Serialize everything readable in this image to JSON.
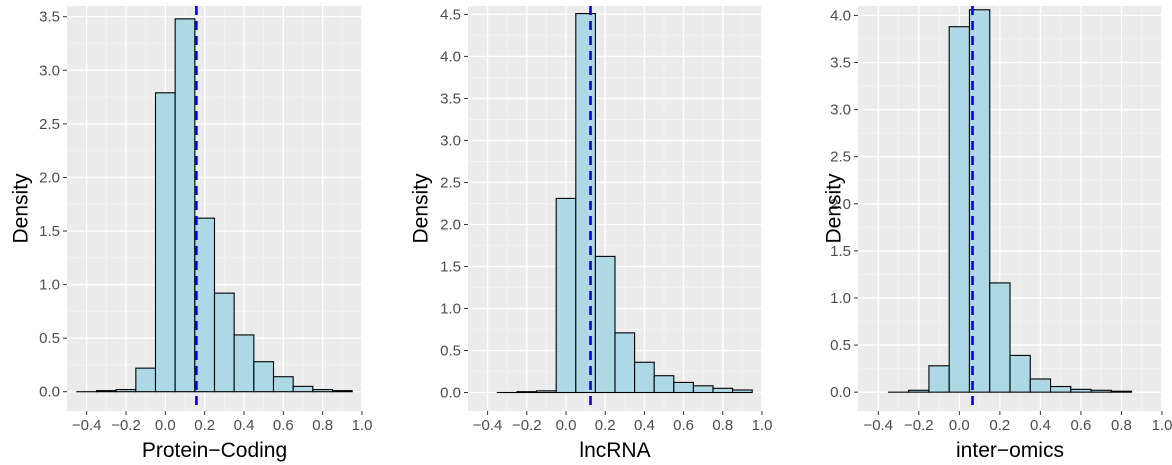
{
  "colors": {
    "panel_bg": "#ebebeb",
    "grid_major": "#ffffff",
    "grid_minor": "#f5f5f5",
    "bar_fill": "#add8e6",
    "bar_stroke": "#000000",
    "ref_line": "#0000ff"
  },
  "chart_data": [
    {
      "type": "bar",
      "xlabel": "Protein−Coding",
      "ylabel": "Density",
      "xlim": [
        -0.5,
        1.0
      ],
      "ylim": [
        -0.18,
        3.6
      ],
      "x_ticks": [
        -0.4,
        -0.2,
        0.0,
        0.2,
        0.4,
        0.6,
        0.8,
        1.0
      ],
      "x_tick_labels": [
        "−0.4",
        "−0.2",
        "0.0",
        "0.2",
        "0.4",
        "0.6",
        "0.8",
        "1.0"
      ],
      "y_ticks": [
        0.0,
        0.5,
        1.0,
        1.5,
        2.0,
        2.5,
        3.0,
        3.5
      ],
      "y_tick_labels": [
        "0.0",
        "0.5",
        "1.0",
        "1.5",
        "2.0",
        "2.5",
        "3.0",
        "3.5"
      ],
      "bin_width": 0.1,
      "bin_centers": [
        -0.4,
        -0.3,
        -0.2,
        -0.1,
        0.0,
        0.1,
        0.2,
        0.3,
        0.4,
        0.5,
        0.6,
        0.7,
        0.8,
        0.9
      ],
      "values": [
        0.0,
        0.01,
        0.02,
        0.22,
        2.79,
        3.48,
        1.62,
        0.92,
        0.53,
        0.28,
        0.14,
        0.05,
        0.02,
        0.01
      ],
      "reference_line": 0.158,
      "grid": true
    },
    {
      "type": "bar",
      "xlabel": "lncRNA",
      "ylabel": "Density",
      "xlim": [
        -0.5,
        1.0
      ],
      "ylim": [
        -0.22,
        4.6
      ],
      "x_ticks": [
        -0.4,
        -0.2,
        0.0,
        0.2,
        0.4,
        0.6,
        0.8,
        1.0
      ],
      "x_tick_labels": [
        "−0.4",
        "−0.2",
        "0.0",
        "0.2",
        "0.4",
        "0.6",
        "0.8",
        "1.0"
      ],
      "y_ticks": [
        0.0,
        0.5,
        1.0,
        1.5,
        2.0,
        2.5,
        3.0,
        3.5,
        4.0,
        4.5
      ],
      "y_tick_labels": [
        "0.0",
        "0.5",
        "1.0",
        "1.5",
        "2.0",
        "2.5",
        "3.0",
        "3.5",
        "4.0",
        "4.5"
      ],
      "bin_width": 0.1,
      "bin_centers": [
        -0.3,
        -0.2,
        -0.1,
        0.0,
        0.1,
        0.2,
        0.3,
        0.4,
        0.5,
        0.6,
        0.7,
        0.8,
        0.9
      ],
      "values": [
        0.0,
        0.01,
        0.02,
        2.31,
        4.51,
        1.62,
        0.71,
        0.36,
        0.2,
        0.12,
        0.08,
        0.05,
        0.03
      ],
      "reference_line": 0.125,
      "grid": true
    },
    {
      "type": "bar",
      "xlabel": "inter−omics",
      "ylabel": "Density",
      "xlim": [
        -0.5,
        1.0
      ],
      "ylim": [
        -0.2,
        4.1
      ],
      "x_ticks": [
        -0.4,
        -0.2,
        0.0,
        0.2,
        0.4,
        0.6,
        0.8,
        1.0
      ],
      "x_tick_labels": [
        "−0.4",
        "−0.2",
        "0.0",
        "0.2",
        "0.4",
        "0.6",
        "0.8",
        "1.0"
      ],
      "y_ticks": [
        0.0,
        0.5,
        1.0,
        1.5,
        2.0,
        2.5,
        3.0,
        3.5,
        4.0
      ],
      "y_tick_labels": [
        "0.0",
        "0.5",
        "1.0",
        "1.5",
        "2.0",
        "2.5",
        "3.0",
        "3.5",
        "4.0"
      ],
      "bin_width": 0.1,
      "bin_centers": [
        -0.3,
        -0.2,
        -0.1,
        0.0,
        0.1,
        0.2,
        0.3,
        0.4,
        0.5,
        0.6,
        0.7,
        0.8
      ],
      "values": [
        0.0,
        0.02,
        0.28,
        3.88,
        4.06,
        1.16,
        0.39,
        0.14,
        0.06,
        0.03,
        0.02,
        0.01
      ],
      "reference_line": 0.065,
      "grid": true
    }
  ]
}
